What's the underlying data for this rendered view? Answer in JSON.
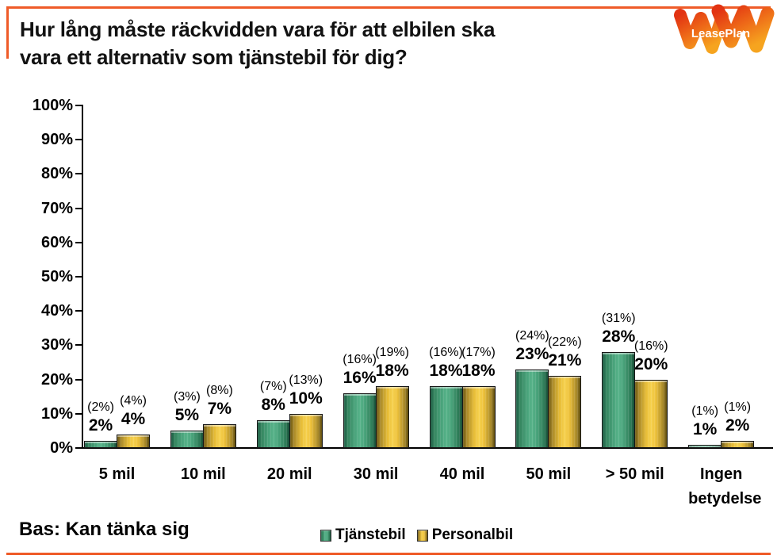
{
  "title": {
    "line1": "Hur lång måste räckvidden vara för att elbilen ska",
    "line2": "vara ett alternativ som tjänstebil för dig?"
  },
  "logo": {
    "brand": "LeasePlan"
  },
  "footer": {
    "base_note": "Bas: Kan tänka sig"
  },
  "colors": {
    "accent_orange": "#EF5B28",
    "axis_black": "#000000",
    "series_green": "#3f9a73",
    "series_yellow": "#eec63c",
    "logo_gradient_start": "#E23312",
    "logo_gradient_end": "#F6A41F"
  },
  "chart_data": {
    "type": "bar",
    "categories": [
      "5 mil",
      "10 mil",
      "20 mil",
      "30 mil",
      "40 mil",
      "50 mil",
      "> 50 mil",
      "Ingen betydelse"
    ],
    "series": [
      {
        "name": "Tjänstebil",
        "color": "#3f9a73",
        "values": [
          2,
          5,
          8,
          16,
          18,
          23,
          28,
          1
        ],
        "value_labels": [
          "2%",
          "5%",
          "8%",
          "16%",
          "18%",
          "23%",
          "28%",
          "1%"
        ],
        "paren_labels": [
          "(2%)",
          "(3%)",
          "(7%)",
          "(16%)",
          "(16%)",
          "(24%)",
          "(31%)",
          "(1%)"
        ]
      },
      {
        "name": "Personalbil",
        "color": "#eec63c",
        "values": [
          4,
          7,
          10,
          18,
          18,
          21,
          20,
          2
        ],
        "value_labels": [
          "4%",
          "7%",
          "10%",
          "18%",
          "18%",
          "21%",
          "20%",
          "2%"
        ],
        "paren_labels": [
          "(4%)",
          "(8%)",
          "(13%)",
          "(19%)",
          "(17%)",
          "(22%)",
          "(16%)",
          "(1%)"
        ]
      }
    ],
    "title": "Hur lång måste räckvidden vara för att elbilen ska vara ett alternativ som tjänstebil för dig?",
    "xlabel": "",
    "ylabel": "",
    "ylim": [
      0,
      100
    ],
    "ytick_step": 10,
    "ytick_suffix": "%",
    "grid": false,
    "legend_position": "bottom-center"
  }
}
